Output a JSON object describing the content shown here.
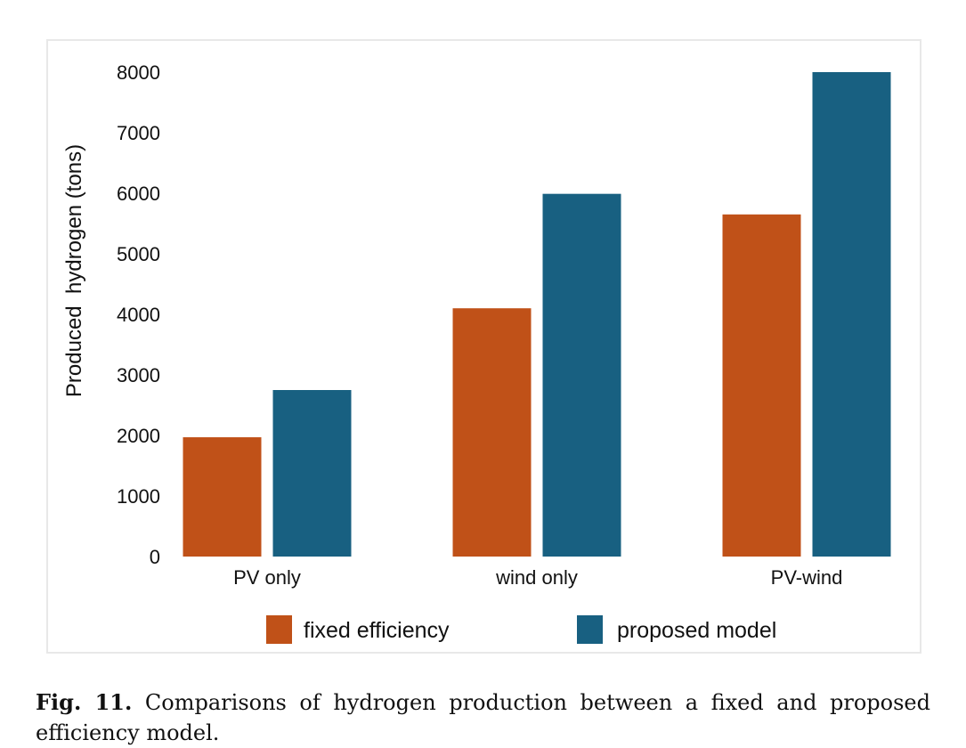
{
  "caption": {
    "label": "Fig. 11.",
    "text": "Comparisons of hydrogen production between a fixed and proposed efficiency model."
  },
  "chart_data": {
    "type": "bar",
    "categories": [
      "PV only",
      "wind only",
      "PV-wind"
    ],
    "series": [
      {
        "name": "fixed efficiency",
        "values": [
          1970,
          4100,
          5650
        ],
        "color": "#c05118"
      },
      {
        "name": "proposed model",
        "values": [
          2750,
          5990,
          8000
        ],
        "color": "#186081"
      }
    ],
    "ylabel": "Produced  hydrogen (tons)",
    "xlabel": "",
    "ylim": [
      0,
      8000
    ],
    "yticks": [
      0,
      1000,
      2000,
      3000,
      4000,
      5000,
      6000,
      7000,
      8000
    ],
    "grid": false,
    "legend_position": "bottom"
  }
}
